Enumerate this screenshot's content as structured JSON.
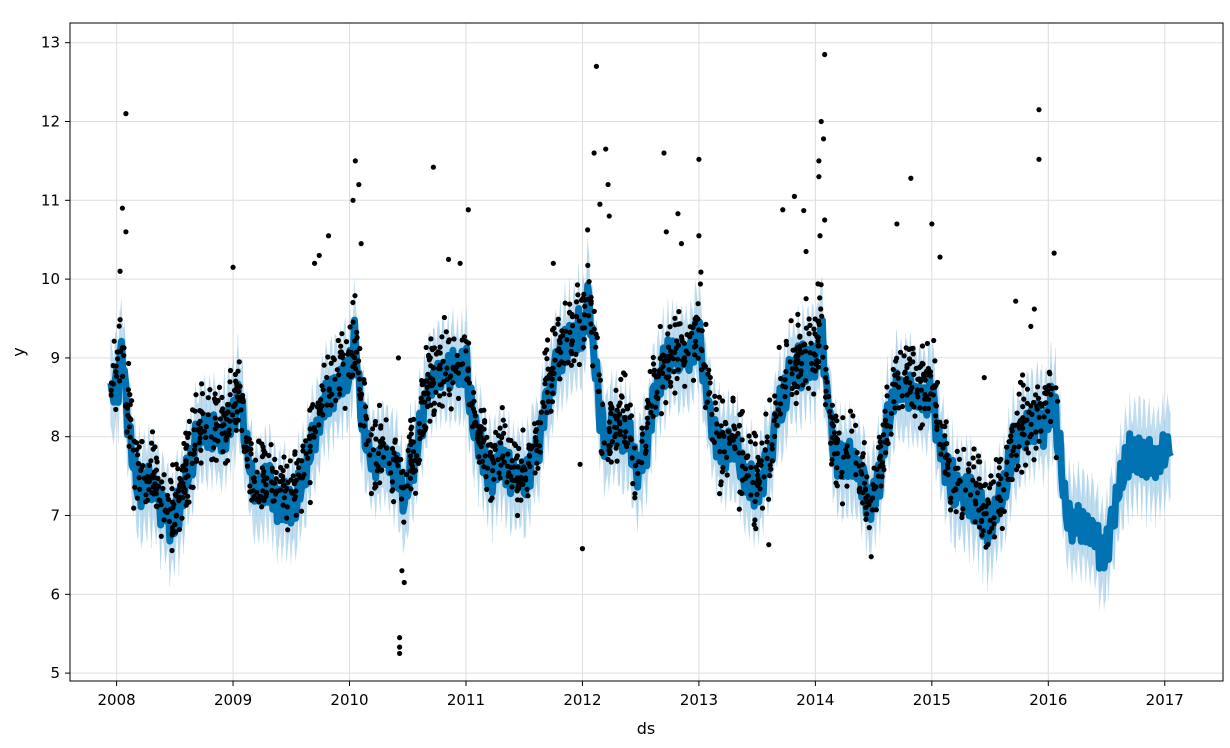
{
  "chart_data": {
    "type": "scatter",
    "title": "",
    "xlabel": "ds",
    "ylabel": "y",
    "xlim": [
      2007.6,
      2017.5
    ],
    "ylim": [
      4.9,
      13.25
    ],
    "grid": true,
    "x_ticks": [
      "2008",
      "2009",
      "2010",
      "2011",
      "2012",
      "2013",
      "2014",
      "2015",
      "2016",
      "2017"
    ],
    "y_ticks": [
      "5",
      "6",
      "7",
      "8",
      "9",
      "10",
      "11",
      "12",
      "13"
    ],
    "colors": {
      "observed": "#000000",
      "forecast": "#0072B2",
      "interval": "#A9D1EA",
      "grid": "#dddddd"
    },
    "forecast": {
      "x": [
        2007.95,
        2008.0,
        2008.05,
        2008.1,
        2008.15,
        2008.2,
        2008.3,
        2008.4,
        2008.47,
        2008.55,
        2008.62,
        2008.7,
        2008.8,
        2008.9,
        2009.0,
        2009.05,
        2009.12,
        2009.2,
        2009.3,
        2009.4,
        2009.5,
        2009.6,
        2009.7,
        2009.8,
        2009.9,
        2010.0,
        2010.05,
        2010.1,
        2010.15,
        2010.2,
        2010.3,
        2010.4,
        2010.47,
        2010.55,
        2010.62,
        2010.7,
        2010.8,
        2010.9,
        2011.0,
        2011.05,
        2011.12,
        2011.2,
        2011.3,
        2011.4,
        2011.5,
        2011.6,
        2011.7,
        2011.8,
        2011.9,
        2012.0,
        2012.05,
        2012.1,
        2012.15,
        2012.2,
        2012.3,
        2012.4,
        2012.47,
        2012.55,
        2012.62,
        2012.7,
        2012.8,
        2012.9,
        2013.0,
        2013.05,
        2013.12,
        2013.2,
        2013.3,
        2013.4,
        2013.5,
        2013.6,
        2013.7,
        2013.8,
        2013.9,
        2014.0,
        2014.05,
        2014.1,
        2014.15,
        2014.2,
        2014.3,
        2014.4,
        2014.47,
        2014.55,
        2014.62,
        2014.7,
        2014.8,
        2014.9,
        2015.0,
        2015.05,
        2015.12,
        2015.2,
        2015.3,
        2015.4,
        2015.5,
        2015.6,
        2015.7,
        2015.8,
        2015.9,
        2016.0,
        2016.05,
        2016.1,
        2016.15,
        2016.2,
        2016.3,
        2016.4,
        2016.47,
        2016.55,
        2016.62,
        2016.7,
        2016.8,
        2016.9,
        2017.0,
        2017.05
      ],
      "yhat": [
        8.5,
        8.7,
        9.0,
        8.2,
        7.6,
        7.3,
        7.4,
        7.1,
        6.9,
        7.2,
        7.6,
        8.0,
        8.1,
        8.0,
        8.3,
        8.5,
        7.8,
        7.3,
        7.4,
        7.2,
        7.1,
        7.4,
        8.0,
        8.5,
        8.7,
        8.8,
        9.2,
        8.3,
        7.9,
        7.7,
        7.8,
        7.6,
        7.2,
        7.6,
        8.2,
        8.7,
        8.8,
        8.8,
        8.9,
        8.3,
        7.9,
        7.6,
        7.7,
        7.5,
        7.4,
        7.8,
        8.5,
        9.0,
        9.2,
        9.3,
        9.8,
        9.0,
        8.4,
        8.0,
        8.1,
        7.9,
        7.6,
        7.9,
        8.5,
        8.9,
        9.0,
        9.0,
        9.3,
        8.7,
        8.1,
        7.8,
        7.9,
        7.5,
        7.3,
        7.7,
        8.4,
        8.8,
        8.9,
        9.0,
        9.4,
        8.6,
        8.0,
        7.7,
        7.7,
        7.5,
        7.1,
        7.5,
        8.2,
        8.6,
        8.6,
        8.5,
        8.6,
        8.1,
        7.6,
        7.3,
        7.3,
        7.1,
        6.9,
        7.2,
        7.8,
        8.1,
        8.2,
        8.2,
        8.4,
        7.7,
        7.1,
        6.9,
        6.9,
        6.8,
        6.5,
        6.9,
        7.4,
        7.8,
        7.8,
        7.7,
        7.8,
        7.9
      ],
      "band": 0.55
    },
    "observed_outliers": [
      {
        "x": 2008.08,
        "y": 12.1
      },
      {
        "x": 2008.05,
        "y": 10.9
      },
      {
        "x": 2008.08,
        "y": 10.6
      },
      {
        "x": 2008.03,
        "y": 10.1
      },
      {
        "x": 2009.0,
        "y": 10.15
      },
      {
        "x": 2009.82,
        "y": 10.55
      },
      {
        "x": 2010.05,
        "y": 11.5
      },
      {
        "x": 2010.08,
        "y": 11.2
      },
      {
        "x": 2010.03,
        "y": 11.0
      },
      {
        "x": 2010.1,
        "y": 10.45
      },
      {
        "x": 2009.7,
        "y": 10.2
      },
      {
        "x": 2009.74,
        "y": 10.3
      },
      {
        "x": 2010.42,
        "y": 9.0
      },
      {
        "x": 2010.45,
        "y": 6.3
      },
      {
        "x": 2010.47,
        "y": 6.15
      },
      {
        "x": 2010.43,
        "y": 5.45
      },
      {
        "x": 2010.43,
        "y": 5.33
      },
      {
        "x": 2010.43,
        "y": 5.25
      },
      {
        "x": 2010.72,
        "y": 11.42
      },
      {
        "x": 2011.02,
        "y": 10.88
      },
      {
        "x": 2010.85,
        "y": 10.25
      },
      {
        "x": 2010.95,
        "y": 10.2
      },
      {
        "x": 2011.75,
        "y": 10.2
      },
      {
        "x": 2012.0,
        "y": 6.58
      },
      {
        "x": 2012.12,
        "y": 12.7
      },
      {
        "x": 2012.2,
        "y": 11.65
      },
      {
        "x": 2012.1,
        "y": 11.6
      },
      {
        "x": 2012.22,
        "y": 11.2
      },
      {
        "x": 2012.15,
        "y": 10.95
      },
      {
        "x": 2012.23,
        "y": 10.8
      },
      {
        "x": 2011.98,
        "y": 7.65
      },
      {
        "x": 2012.7,
        "y": 11.6
      },
      {
        "x": 2012.82,
        "y": 10.83
      },
      {
        "x": 2013.0,
        "y": 11.52
      },
      {
        "x": 2013.0,
        "y": 10.55
      },
      {
        "x": 2012.85,
        "y": 10.45
      },
      {
        "x": 2012.72,
        "y": 10.6
      },
      {
        "x": 2013.6,
        "y": 6.63
      },
      {
        "x": 2013.82,
        "y": 11.05
      },
      {
        "x": 2013.72,
        "y": 10.88
      },
      {
        "x": 2013.9,
        "y": 10.87
      },
      {
        "x": 2013.92,
        "y": 10.35
      },
      {
        "x": 2014.08,
        "y": 12.85
      },
      {
        "x": 2014.05,
        "y": 12.0
      },
      {
        "x": 2014.07,
        "y": 11.78
      },
      {
        "x": 2014.03,
        "y": 11.5
      },
      {
        "x": 2014.03,
        "y": 11.3
      },
      {
        "x": 2014.08,
        "y": 10.75
      },
      {
        "x": 2014.04,
        "y": 10.55
      },
      {
        "x": 2014.7,
        "y": 10.7
      },
      {
        "x": 2014.82,
        "y": 11.28
      },
      {
        "x": 2015.0,
        "y": 10.7
      },
      {
        "x": 2015.07,
        "y": 10.28
      },
      {
        "x": 2015.45,
        "y": 8.75
      },
      {
        "x": 2015.92,
        "y": 12.15
      },
      {
        "x": 2015.92,
        "y": 11.52
      },
      {
        "x": 2016.05,
        "y": 10.33
      },
      {
        "x": 2015.72,
        "y": 9.72
      },
      {
        "x": 2015.85,
        "y": 9.4
      },
      {
        "x": 2015.88,
        "y": 9.62
      }
    ],
    "observed_seed": 20240611
  }
}
